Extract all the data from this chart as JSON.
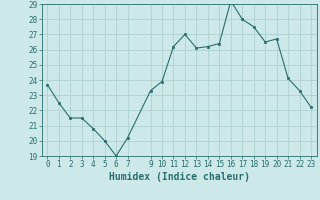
{
  "x": [
    0,
    1,
    2,
    3,
    4,
    5,
    6,
    7,
    9,
    10,
    11,
    12,
    13,
    14,
    15,
    16,
    17,
    18,
    19,
    20,
    21,
    22,
    23
  ],
  "y": [
    23.7,
    22.5,
    21.5,
    21.5,
    20.8,
    20.0,
    19.0,
    20.2,
    23.3,
    23.9,
    26.2,
    27.0,
    26.1,
    26.2,
    26.4,
    29.2,
    28.0,
    27.5,
    26.5,
    26.7,
    24.1,
    23.3,
    22.2
  ],
  "bg_color": "#cce8e8",
  "grid_color": "#aacccc",
  "line_color": "#2a6e6e",
  "marker_color": "#2a6e6e",
  "xlabel": "Humidex (Indice chaleur)",
  "ylim": [
    19,
    29
  ],
  "xlim": [
    -0.5,
    23.5
  ],
  "yticks": [
    19,
    20,
    21,
    22,
    23,
    24,
    25,
    26,
    27,
    28,
    29
  ],
  "xticks": [
    0,
    1,
    2,
    3,
    4,
    5,
    6,
    7,
    9,
    10,
    11,
    12,
    13,
    14,
    15,
    16,
    17,
    18,
    19,
    20,
    21,
    22,
    23
  ],
  "tick_color": "#2a6e6e",
  "xlabel_fontsize": 7,
  "tick_fontsize": 5.5,
  "linewidth": 0.8,
  "markersize": 2.0
}
